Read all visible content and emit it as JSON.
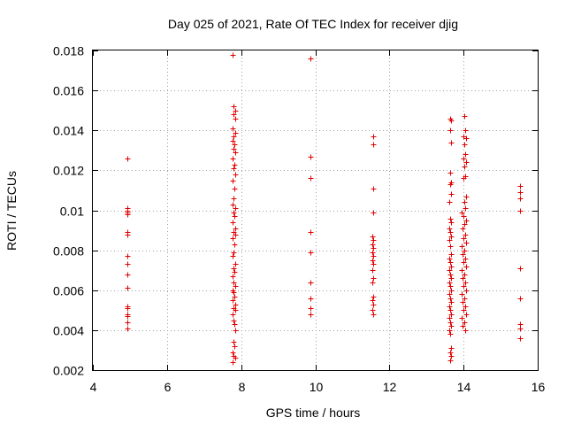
{
  "chart_data": {
    "type": "scatter",
    "title": "Day 025 of 2021, Rate Of TEC Index for receiver djig",
    "xlabel": "GPS time / hours",
    "ylabel": "ROTI / TECUs",
    "xlim": [
      4,
      16
    ],
    "ylim": [
      0.002,
      0.018
    ],
    "xticks": [
      4,
      6,
      8,
      10,
      12,
      14,
      16
    ],
    "xtick_labels": [
      "4",
      "6",
      "8",
      "10",
      "12",
      "14",
      "16"
    ],
    "yticks": [
      0.002,
      0.004,
      0.006,
      0.008,
      0.01,
      0.012,
      0.014,
      0.016,
      0.018
    ],
    "ytick_labels": [
      "0.002",
      "0.004",
      "0.006",
      "0.008",
      "0.01",
      "0.012",
      "0.014",
      "0.016",
      "0.018"
    ],
    "grid": true,
    "marker": "+",
    "color": "#e00000",
    "series": [
      {
        "name": "ROTI",
        "points": [
          [
            4.93,
            0.0126
          ],
          [
            4.93,
            0.0101
          ],
          [
            4.93,
            0.01
          ],
          [
            4.93,
            0.0099
          ],
          [
            4.93,
            0.0098
          ],
          [
            4.93,
            0.0089
          ],
          [
            4.93,
            0.0088
          ],
          [
            4.93,
            0.0077
          ],
          [
            4.93,
            0.0073
          ],
          [
            4.93,
            0.0068
          ],
          [
            4.93,
            0.0061
          ],
          [
            4.93,
            0.0052
          ],
          [
            4.93,
            0.0051
          ],
          [
            4.93,
            0.0048
          ],
          [
            4.93,
            0.0047
          ],
          [
            4.93,
            0.0044
          ],
          [
            4.93,
            0.0041
          ],
          [
            7.78,
            0.0178
          ],
          [
            7.8,
            0.0152
          ],
          [
            7.83,
            0.015
          ],
          [
            7.8,
            0.0148
          ],
          [
            7.85,
            0.0146
          ],
          [
            7.78,
            0.0141
          ],
          [
            7.83,
            0.0139
          ],
          [
            7.8,
            0.0137
          ],
          [
            7.78,
            0.0135
          ],
          [
            7.82,
            0.0133
          ],
          [
            7.8,
            0.0131
          ],
          [
            7.85,
            0.0129
          ],
          [
            7.78,
            0.0126
          ],
          [
            7.82,
            0.0123
          ],
          [
            7.8,
            0.0121
          ],
          [
            7.83,
            0.0118
          ],
          [
            7.78,
            0.0115
          ],
          [
            7.82,
            0.0111
          ],
          [
            7.8,
            0.0106
          ],
          [
            7.78,
            0.0103
          ],
          [
            7.83,
            0.0101
          ],
          [
            7.8,
            0.0099
          ],
          [
            7.82,
            0.0097
          ],
          [
            7.78,
            0.0094
          ],
          [
            7.85,
            0.0091
          ],
          [
            7.8,
            0.0089
          ],
          [
            7.83,
            0.0088
          ],
          [
            7.78,
            0.0086
          ],
          [
            7.82,
            0.0083
          ],
          [
            7.8,
            0.0079
          ],
          [
            7.78,
            0.0077
          ],
          [
            7.83,
            0.0073
          ],
          [
            7.8,
            0.0071
          ],
          [
            7.82,
            0.0069
          ],
          [
            7.78,
            0.0067
          ],
          [
            7.8,
            0.0064
          ],
          [
            7.83,
            0.0062
          ],
          [
            7.78,
            0.006
          ],
          [
            7.8,
            0.0059
          ],
          [
            7.82,
            0.0057
          ],
          [
            7.78,
            0.0055
          ],
          [
            7.85,
            0.0053
          ],
          [
            7.8,
            0.0051
          ],
          [
            7.83,
            0.005
          ],
          [
            7.78,
            0.0048
          ],
          [
            7.8,
            0.0045
          ],
          [
            7.82,
            0.0043
          ],
          [
            7.85,
            0.004
          ],
          [
            7.8,
            0.0034
          ],
          [
            7.82,
            0.0032
          ],
          [
            7.78,
            0.0029
          ],
          [
            7.8,
            0.0027
          ],
          [
            7.83,
            0.0026
          ],
          [
            7.78,
            0.0024
          ],
          [
            9.88,
            0.0176
          ],
          [
            9.88,
            0.0127
          ],
          [
            9.88,
            0.0116
          ],
          [
            9.88,
            0.0089
          ],
          [
            9.88,
            0.0079
          ],
          [
            9.88,
            0.0064
          ],
          [
            9.88,
            0.0056
          ],
          [
            9.88,
            0.0051
          ],
          [
            9.88,
            0.0048
          ],
          [
            11.57,
            0.0137
          ],
          [
            11.57,
            0.0133
          ],
          [
            11.57,
            0.0111
          ],
          [
            11.57,
            0.0099
          ],
          [
            11.55,
            0.0087
          ],
          [
            11.57,
            0.0085
          ],
          [
            11.55,
            0.0083
          ],
          [
            11.57,
            0.0081
          ],
          [
            11.55,
            0.0079
          ],
          [
            11.57,
            0.0077
          ],
          [
            11.55,
            0.0075
          ],
          [
            11.57,
            0.0073
          ],
          [
            11.55,
            0.007
          ],
          [
            11.57,
            0.0066
          ],
          [
            11.55,
            0.0064
          ],
          [
            11.57,
            0.0057
          ],
          [
            11.55,
            0.0055
          ],
          [
            11.57,
            0.0053
          ],
          [
            11.55,
            0.005
          ],
          [
            11.57,
            0.0048
          ],
          [
            13.65,
            0.0146
          ],
          [
            13.67,
            0.0145
          ],
          [
            13.65,
            0.014
          ],
          [
            13.67,
            0.0134
          ],
          [
            13.65,
            0.0119
          ],
          [
            13.67,
            0.0114
          ],
          [
            13.65,
            0.0113
          ],
          [
            13.67,
            0.0108
          ],
          [
            13.62,
            0.0104
          ],
          [
            13.65,
            0.0096
          ],
          [
            13.67,
            0.0094
          ],
          [
            13.62,
            0.0091
          ],
          [
            13.65,
            0.0089
          ],
          [
            13.67,
            0.0087
          ],
          [
            13.62,
            0.0085
          ],
          [
            13.65,
            0.0082
          ],
          [
            13.67,
            0.0078
          ],
          [
            13.62,
            0.0076
          ],
          [
            13.65,
            0.0074
          ],
          [
            13.67,
            0.0072
          ],
          [
            13.62,
            0.007
          ],
          [
            13.65,
            0.0068
          ],
          [
            13.67,
            0.0066
          ],
          [
            13.62,
            0.0064
          ],
          [
            13.65,
            0.0062
          ],
          [
            13.67,
            0.006
          ],
          [
            13.62,
            0.0058
          ],
          [
            13.65,
            0.0056
          ],
          [
            13.67,
            0.0054
          ],
          [
            13.62,
            0.0052
          ],
          [
            13.65,
            0.005
          ],
          [
            13.67,
            0.0048
          ],
          [
            13.62,
            0.0046
          ],
          [
            13.65,
            0.0044
          ],
          [
            13.67,
            0.0042
          ],
          [
            13.62,
            0.004
          ],
          [
            13.65,
            0.0038
          ],
          [
            13.67,
            0.0031
          ],
          [
            13.65,
            0.0029
          ],
          [
            13.67,
            0.0027
          ],
          [
            13.65,
            0.0025
          ],
          [
            14.02,
            0.0147
          ],
          [
            14.05,
            0.014
          ],
          [
            14.0,
            0.0137
          ],
          [
            14.07,
            0.0136
          ],
          [
            14.02,
            0.0133
          ],
          [
            14.05,
            0.0128
          ],
          [
            14.0,
            0.0126
          ],
          [
            14.07,
            0.0124
          ],
          [
            14.02,
            0.0122
          ],
          [
            14.05,
            0.0117
          ],
          [
            14.0,
            0.0116
          ],
          [
            14.07,
            0.0107
          ],
          [
            14.02,
            0.0104
          ],
          [
            14.05,
            0.0101
          ],
          [
            13.95,
            0.0099
          ],
          [
            14.0,
            0.0097
          ],
          [
            14.07,
            0.0095
          ],
          [
            14.02,
            0.0093
          ],
          [
            13.97,
            0.0091
          ],
          [
            14.05,
            0.0088
          ],
          [
            14.0,
            0.0086
          ],
          [
            14.07,
            0.0084
          ],
          [
            13.95,
            0.0082
          ],
          [
            14.02,
            0.008
          ],
          [
            13.97,
            0.0078
          ],
          [
            14.05,
            0.0076
          ],
          [
            14.0,
            0.0074
          ],
          [
            14.07,
            0.0072
          ],
          [
            13.95,
            0.007
          ],
          [
            14.02,
            0.0068
          ],
          [
            13.97,
            0.0066
          ],
          [
            14.05,
            0.0064
          ],
          [
            14.0,
            0.0062
          ],
          [
            14.07,
            0.006
          ],
          [
            13.95,
            0.0058
          ],
          [
            14.02,
            0.0056
          ],
          [
            13.97,
            0.0054
          ],
          [
            14.05,
            0.0052
          ],
          [
            14.0,
            0.005
          ],
          [
            14.07,
            0.0048
          ],
          [
            13.95,
            0.0046
          ],
          [
            14.02,
            0.0044
          ],
          [
            13.97,
            0.0042
          ],
          [
            14.05,
            0.004
          ],
          [
            15.52,
            0.0112
          ],
          [
            15.52,
            0.0109
          ],
          [
            15.52,
            0.0106
          ],
          [
            15.52,
            0.01
          ],
          [
            15.52,
            0.0071
          ],
          [
            15.52,
            0.0056
          ],
          [
            15.52,
            0.0043
          ],
          [
            15.52,
            0.0041
          ],
          [
            15.52,
            0.0036
          ]
        ]
      }
    ]
  }
}
